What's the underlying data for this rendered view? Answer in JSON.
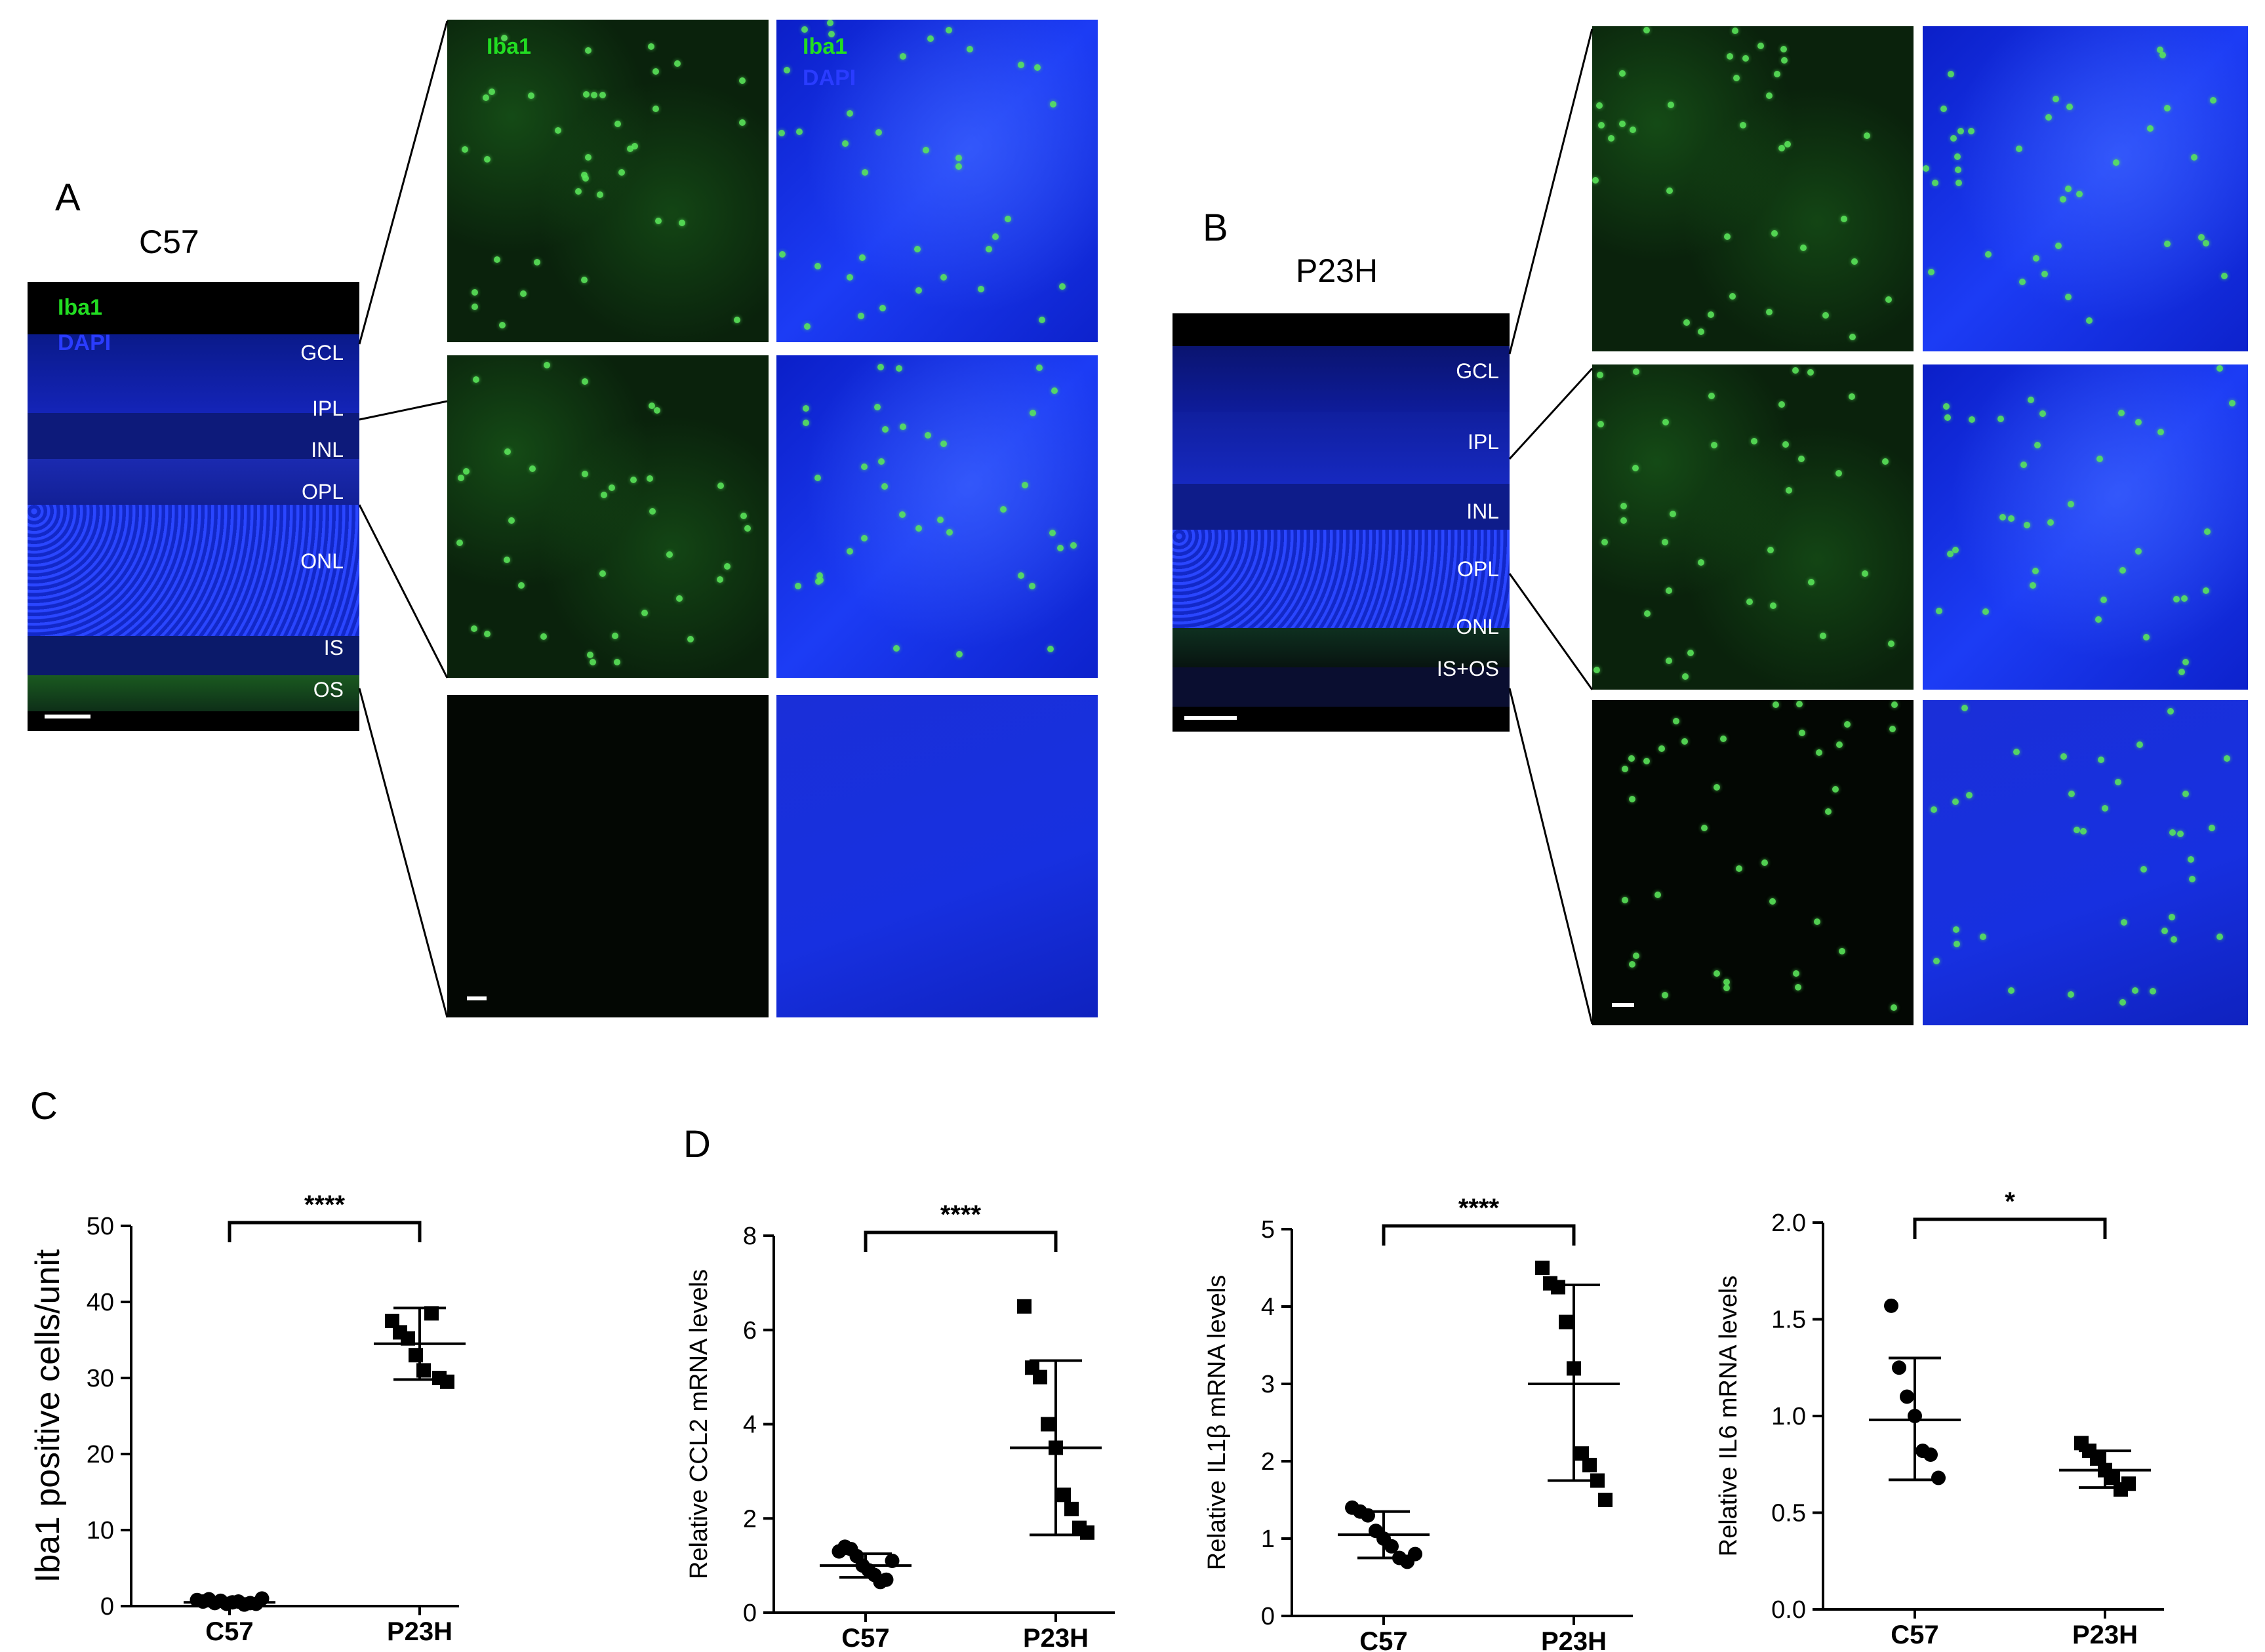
{
  "panels": {
    "A": {
      "letter": "A",
      "group": "C57",
      "channels": [
        "Iba1",
        "DAPI"
      ],
      "layers": [
        "GCL",
        "IPL",
        "INL",
        "OPL",
        "ONL",
        "IS",
        "OS"
      ],
      "zoom_labels": [
        "Iba1",
        "Iba1",
        "DAPI"
      ]
    },
    "B": {
      "letter": "B",
      "group": "P23H",
      "layers": [
        "GCL",
        "IPL",
        "INL",
        "OPL",
        "ONL",
        "IS+OS"
      ]
    },
    "C": {
      "letter": "C"
    },
    "D": {
      "letter": "D"
    }
  },
  "chart_data": [
    {
      "id": "C",
      "type": "scatter",
      "ylabel": "Iba1 positive cells/unit",
      "categories": [
        "C57",
        "P23H"
      ],
      "ylim": [
        0,
        50
      ],
      "yticks": [
        0,
        10,
        20,
        30,
        40,
        50
      ],
      "significance": "****",
      "series": [
        {
          "category": "C57",
          "marker": "circle",
          "mean": 0.5,
          "sd_low": 0.0,
          "sd_high": 1.0,
          "points": [
            0.8,
            0.6,
            0.9,
            0.4,
            0.7,
            0.3,
            0.5,
            0.6,
            0.2,
            0.4,
            0.3,
            1.0
          ]
        },
        {
          "category": "P23H",
          "marker": "square",
          "mean": 34.5,
          "sd_low": 29.8,
          "sd_high": 39.2,
          "points": [
            37.5,
            36.0,
            35.2,
            33.0,
            31.0,
            38.5,
            30.0,
            29.5
          ]
        }
      ]
    },
    {
      "id": "D1",
      "type": "scatter",
      "ylabel": "Relative CCL2 mRNA levels",
      "categories": [
        "C57",
        "P23H"
      ],
      "ylim": [
        0,
        8
      ],
      "yticks": [
        0,
        2,
        4,
        6,
        8
      ],
      "significance": "****",
      "series": [
        {
          "category": "C57",
          "marker": "circle",
          "mean": 1.0,
          "sd_low": 0.75,
          "sd_high": 1.25,
          "points": [
            1.3,
            1.4,
            1.35,
            1.2,
            1.0,
            0.9,
            0.8,
            0.65,
            0.7,
            1.1
          ]
        },
        {
          "category": "P23H",
          "marker": "square",
          "mean": 3.5,
          "sd_low": 1.65,
          "sd_high": 5.35,
          "points": [
            6.5,
            5.2,
            5.0,
            4.0,
            3.5,
            2.5,
            2.2,
            1.8,
            1.7
          ]
        }
      ]
    },
    {
      "id": "D2",
      "type": "scatter",
      "ylabel": "Relative IL1β mRNA levels",
      "categories": [
        "C57",
        "P23H"
      ],
      "ylim": [
        0,
        5
      ],
      "yticks": [
        0,
        1,
        2,
        3,
        4,
        5
      ],
      "significance": "****",
      "series": [
        {
          "category": "C57",
          "marker": "circle",
          "mean": 1.05,
          "sd_low": 0.75,
          "sd_high": 1.35,
          "points": [
            1.4,
            1.35,
            1.3,
            1.1,
            1.0,
            0.9,
            0.75,
            0.7,
            0.8
          ]
        },
        {
          "category": "P23H",
          "marker": "square",
          "mean": 3.0,
          "sd_low": 1.75,
          "sd_high": 4.28,
          "points": [
            4.5,
            4.3,
            4.25,
            3.8,
            3.2,
            2.1,
            1.95,
            1.75,
            1.5
          ]
        }
      ]
    },
    {
      "id": "D3",
      "type": "scatter",
      "ylabel": "Relative IL6 mRNA levels",
      "categories": [
        "C57",
        "P23H"
      ],
      "ylim": [
        0.0,
        2.0
      ],
      "yticks": [
        0.0,
        0.5,
        1.0,
        1.5,
        2.0
      ],
      "significance": "*",
      "series": [
        {
          "category": "C57",
          "marker": "circle",
          "mean": 0.98,
          "sd_low": 0.67,
          "sd_high": 1.3,
          "points": [
            1.57,
            1.25,
            1.1,
            1.0,
            0.82,
            0.8,
            0.68
          ]
        },
        {
          "category": "P23H",
          "marker": "square",
          "mean": 0.72,
          "sd_low": 0.63,
          "sd_high": 0.82,
          "points": [
            0.86,
            0.82,
            0.78,
            0.72,
            0.68,
            0.62,
            0.65
          ]
        }
      ]
    }
  ]
}
